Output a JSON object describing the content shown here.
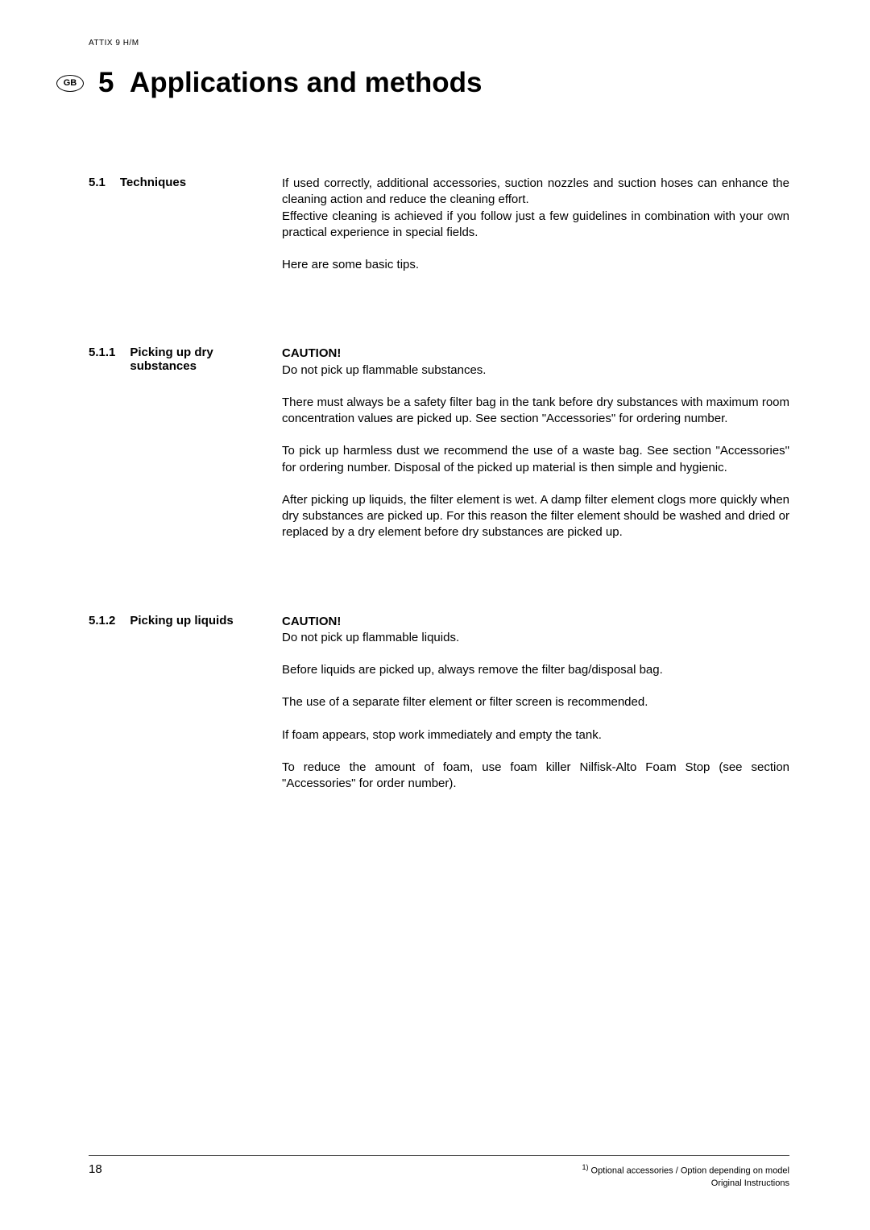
{
  "header": {
    "model": "ATTIX 9 H/M"
  },
  "badge": "GB",
  "chapter": {
    "number": "5",
    "title": "Applications and methods"
  },
  "sections": [
    {
      "num": "5.1",
      "heading": "Techniques",
      "paras": [
        "If used correctly, additional accessories, suction nozzles and suction hoses can enhance the cleaning action and reduce the cleaning effort.",
        "Effective cleaning is achieved if you follow just a few guidelines in combination with your own practical experience in special fields.",
        "Here are some basic tips."
      ]
    },
    {
      "num": "5.1.1",
      "heading": "Picking up dry substances",
      "caution": "CAUTION!",
      "caution_line": "Do not pick up flammable substances.",
      "paras": [
        "There must always be a safety filter bag in the tank before dry substances with maximum room concentration values are picked up. See section \"Accessories\" for ordering number.",
        "To pick up harmless dust we recommend the use of a waste bag. See section \"Accessories\" for ordering number. Disposal of the picked up material is then simple and hygienic.",
        "After picking up liquids, the filter element is wet. A damp filter element clogs more quickly when dry substances are picked up. For this reason the filter element should be washed and dried or replaced by a dry element before dry substances are picked up."
      ]
    },
    {
      "num": "5.1.2",
      "heading": "Picking up liquids",
      "caution": "CAUTION!",
      "caution_line": "Do not pick up flammable liquids.",
      "paras": [
        "Before liquids are picked up, always remove the filter bag/disposal bag.",
        "The use of a separate filter element or filter screen is recommended.",
        "If foam appears, stop work immediately and empty the tank.",
        "To reduce the amount of foam, use foam killer Nilfisk-Alto Foam Stop (see section \"Accessories\" for order number)."
      ]
    }
  ],
  "footer": {
    "page": "18",
    "note_sup": "1)",
    "note1": " Optional accessories / Option depending on model",
    "note2": "Original Instructions"
  }
}
